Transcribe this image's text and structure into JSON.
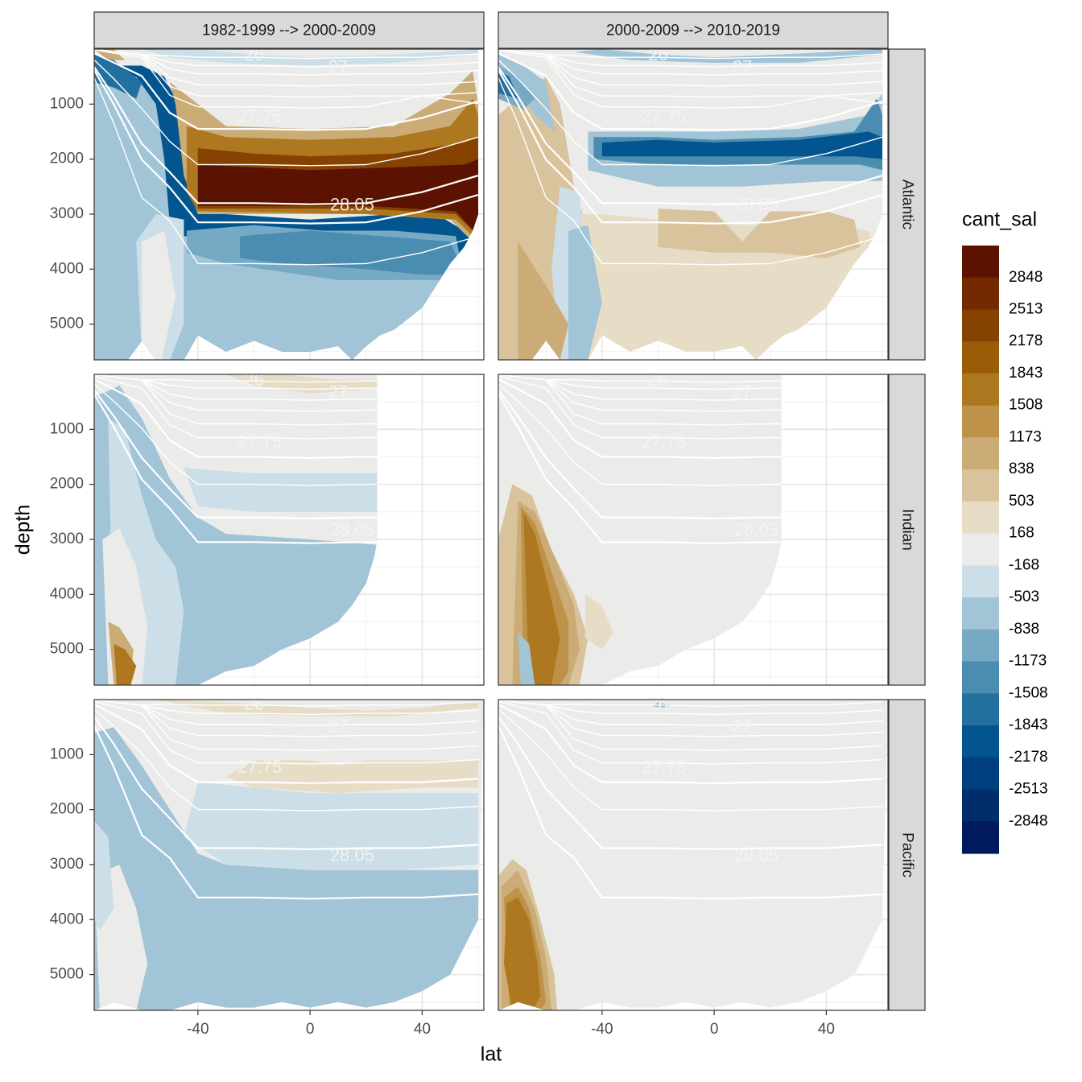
{
  "chart_data": {
    "type": "heatmap",
    "title": "",
    "xlabel": "lat",
    "ylabel": "depth",
    "x_ticks": [
      -40,
      0,
      40
    ],
    "y_ticks": [
      1000,
      2000,
      3000,
      4000,
      5000
    ],
    "xlim": [
      -77,
      62
    ],
    "ylim": [
      5650,
      0
    ],
    "col_facets": [
      "1982-1999 --> 2000-2009",
      "2000-2009 --> 2010-2019"
    ],
    "row_facets": [
      "Atlantic",
      "Indian",
      "Pacific"
    ],
    "isopycnal_labels": [
      "26",
      "27",
      "27.75",
      "28.05"
    ],
    "legend": {
      "title": "cant_sal",
      "placement": "right",
      "labels": [
        "2848",
        "2513",
        "2178",
        "1843",
        "1508",
        "1173",
        "838",
        "503",
        "168",
        "-168",
        "-503",
        "-838",
        "-1173",
        "-1508",
        "-1843",
        "-2178",
        "-2513",
        "-2848"
      ],
      "colors": [
        "#5c1200",
        "#742900",
        "#864200",
        "#9b5c08",
        "#ad7820",
        "#be9248",
        "#cbac76",
        "#d9c39c",
        "#e7dcc6",
        "#ebecea",
        "#ccdfe9",
        "#a2c4d7",
        "#76a9c4",
        "#4b8db0",
        "#23709f",
        "#02558f",
        "#003f7d",
        "#002d6c",
        "#001a5e"
      ]
    }
  }
}
